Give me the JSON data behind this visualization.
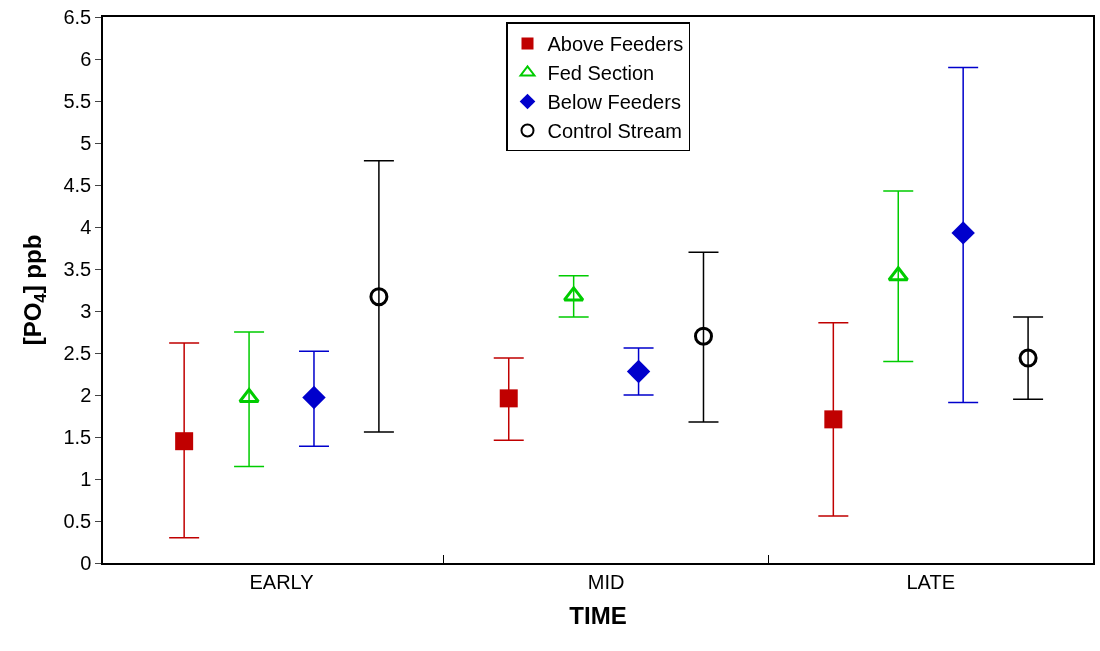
{
  "chart_data": {
    "type": "scatter",
    "xlabel": "TIME",
    "ylabel": "[PO$_{4}$] ppb",
    "categories": [
      "EARLY",
      "MID",
      "LATE"
    ],
    "ylim": [
      0,
      6.5
    ],
    "yticks": [
      0,
      0.5,
      1,
      1.5,
      2,
      2.5,
      3,
      3.5,
      4,
      4.5,
      5,
      5.5,
      6,
      6.5
    ],
    "legend": "top",
    "series": [
      {
        "name": "Above Feeders",
        "color": "#c00000",
        "marker": "square",
        "values": [
          1.45,
          1.96,
          1.71
        ],
        "errors": [
          [
            0.3,
            2.62
          ],
          [
            1.46,
            2.44
          ],
          [
            0.56,
            2.86
          ]
        ]
      },
      {
        "name": "Fed Section",
        "color": "#00cc00",
        "marker": "triangle",
        "values": [
          1.97,
          3.18,
          3.42
        ],
        "errors": [
          [
            1.15,
            2.75
          ],
          [
            2.93,
            3.42
          ],
          [
            2.4,
            4.43
          ]
        ]
      },
      {
        "name": "Below Feeders",
        "color": "#0000cc",
        "marker": "diamond",
        "values": [
          1.97,
          2.28,
          3.93
        ],
        "errors": [
          [
            1.39,
            2.52
          ],
          [
            2.0,
            2.56
          ],
          [
            1.91,
            5.9
          ]
        ]
      },
      {
        "name": "Control Stream",
        "color": "#000000",
        "marker": "circle",
        "values": [
          3.17,
          2.7,
          2.44
        ],
        "errors": [
          [
            1.56,
            4.79
          ],
          [
            1.68,
            3.7
          ],
          [
            1.95,
            2.93
          ]
        ]
      }
    ]
  }
}
